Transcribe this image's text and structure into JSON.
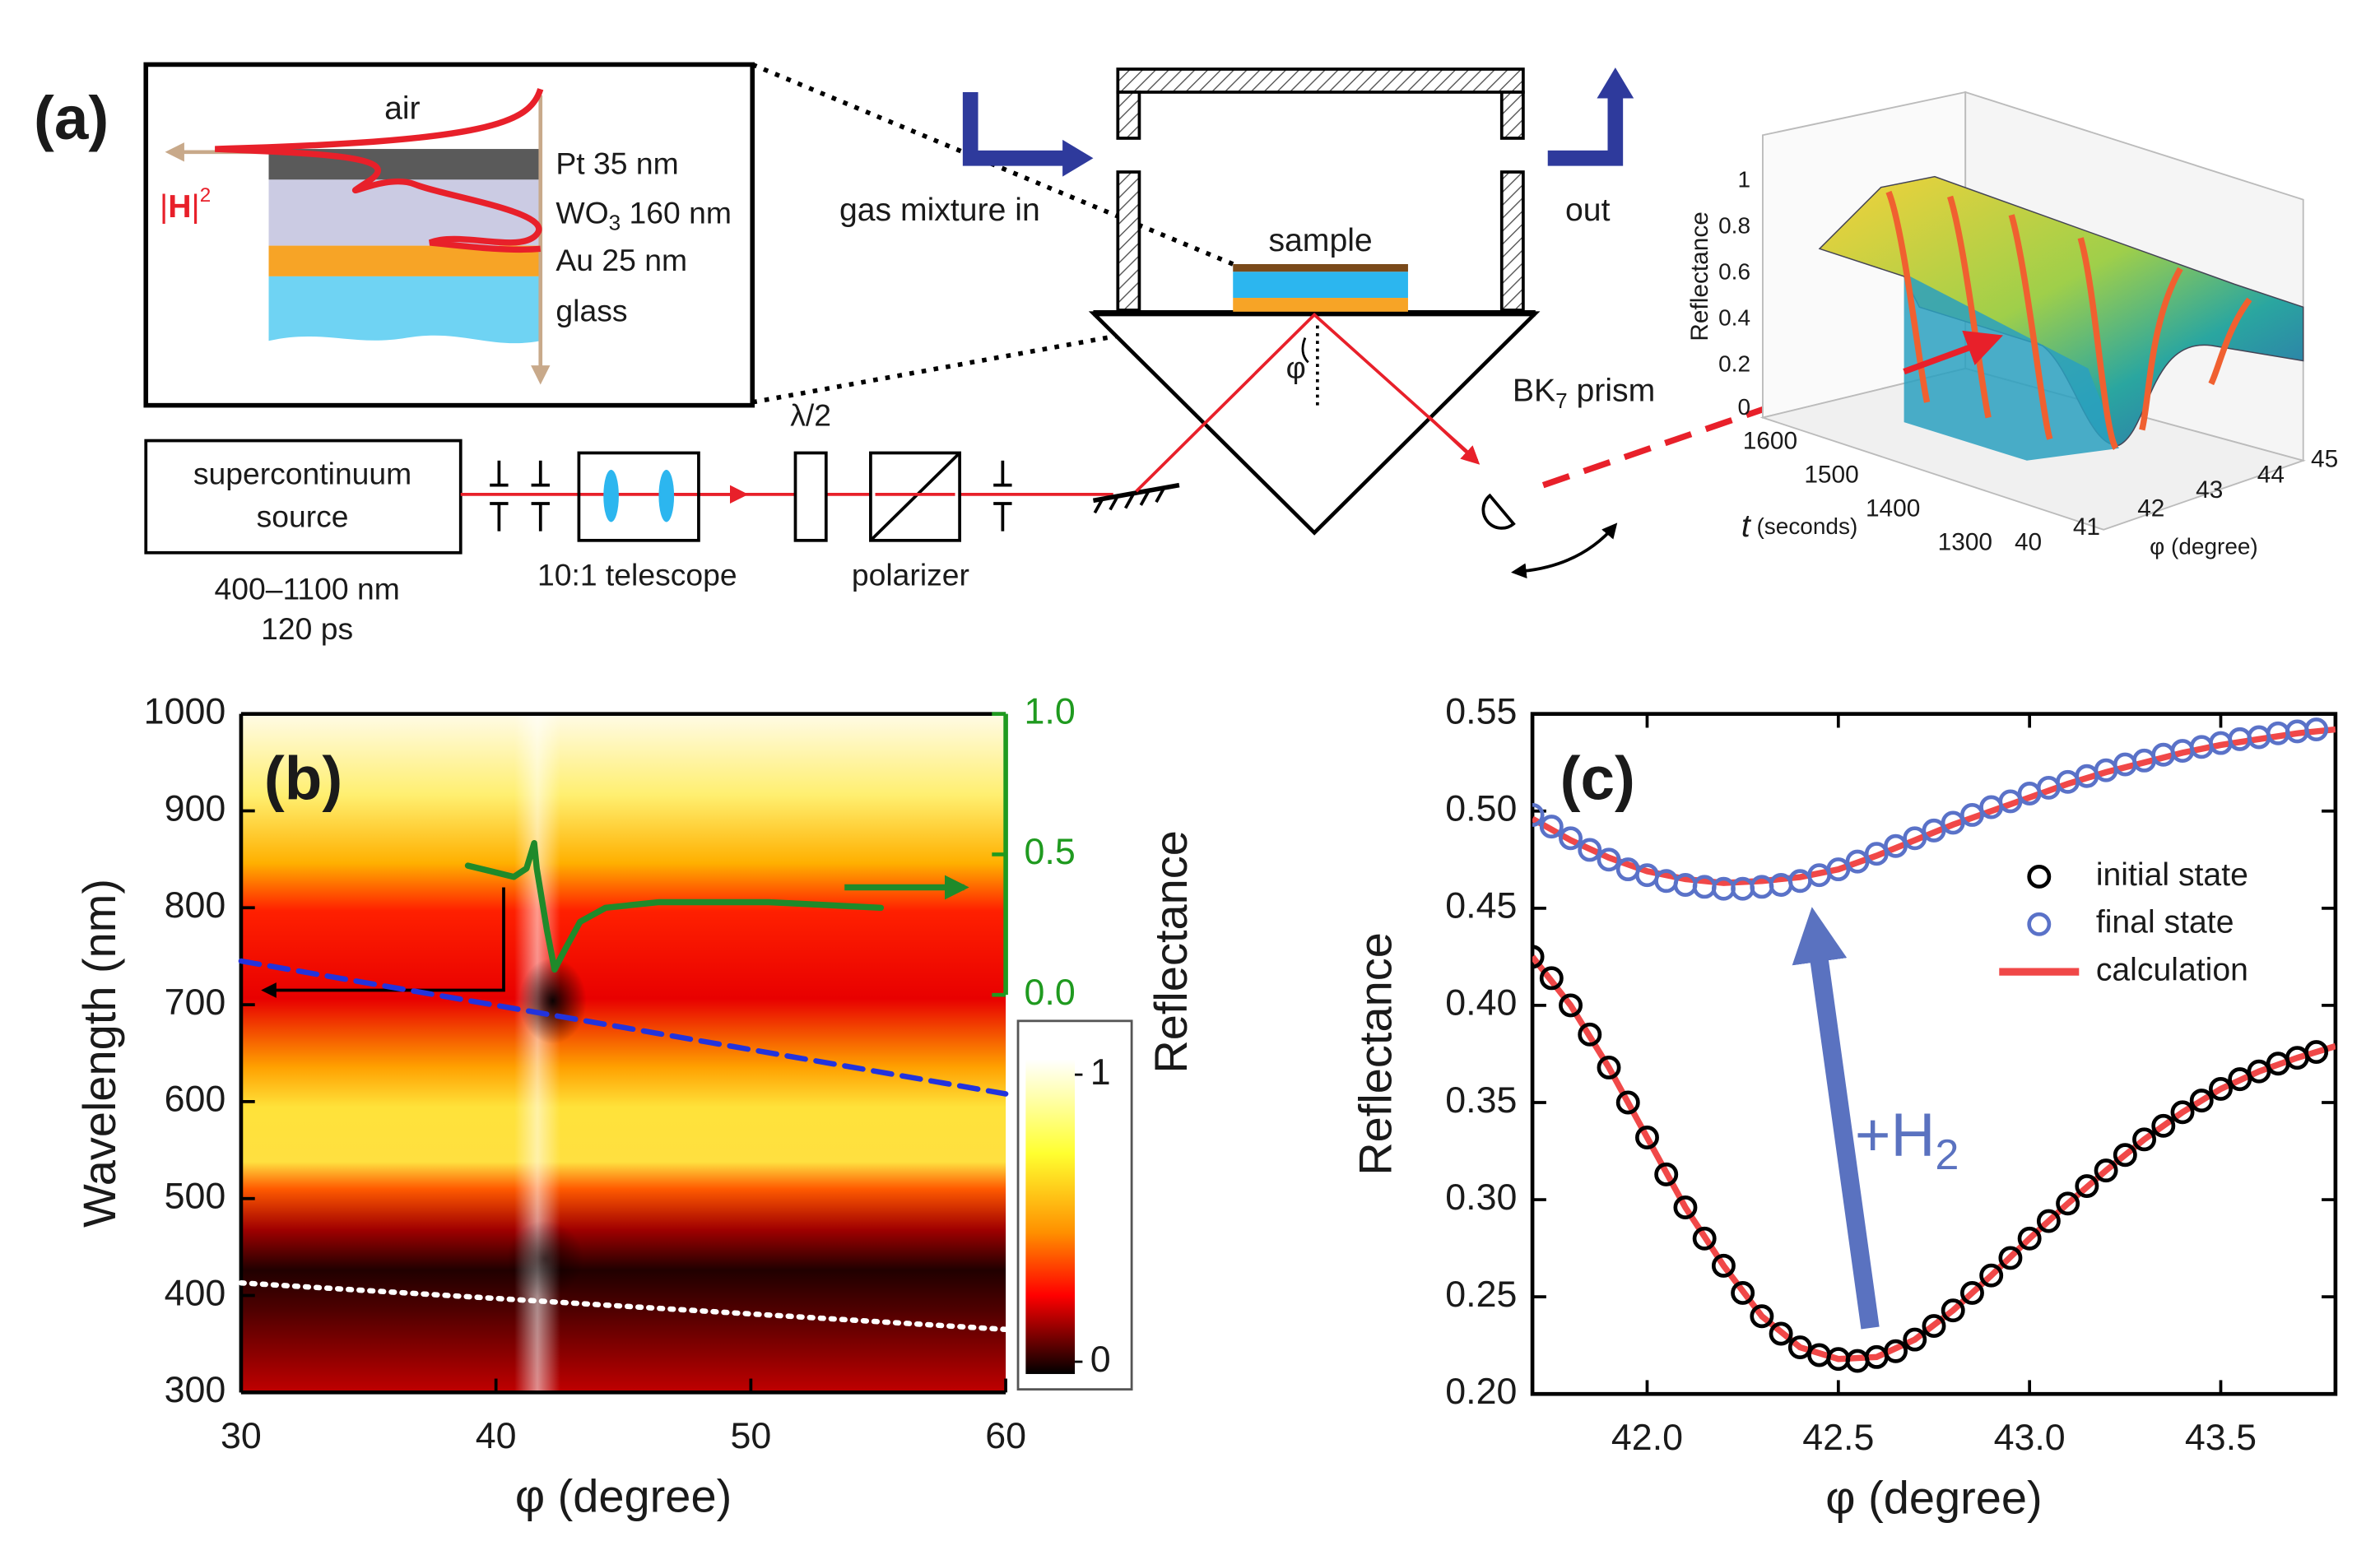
{
  "diagram": {
    "panel_label": "(a)",
    "inset": {
      "air": "air",
      "layers": [
        {
          "text": "Pt 35 nm"
        },
        {
          "text": "WO",
          "sub": "3",
          "rest": " 160 nm"
        },
        {
          "text": "Au 25 nm"
        },
        {
          "text": "glass"
        }
      ],
      "field": {
        "open": "|",
        "symbol": "H",
        "close": "|",
        "sup": "2"
      }
    },
    "gas_in": "gas mixture in",
    "sample": "sample",
    "out": "out",
    "angle": "φ",
    "prism": {
      "text": "BK",
      "sub": "7",
      "rest": " prism"
    },
    "source": [
      "supercontinuum",
      "source"
    ],
    "source_specs": [
      "400–1100 nm",
      "120 ps"
    ],
    "telescope": "10:1 telescope",
    "waveplate": "λ/2",
    "polarizer": "polarizer",
    "surface_plot": {
      "zlabel": "Reflectance",
      "zticks": [
        1,
        0.8,
        0.6,
        0.4,
        0.2,
        0
      ],
      "tlabel": {
        "symbol": "t",
        "rest": " (seconds)"
      },
      "tticks": [
        1600,
        1500,
        1400,
        1300
      ],
      "philabel": "φ (degree)",
      "phiticks": [
        40,
        41,
        42,
        43,
        44,
        45
      ]
    }
  },
  "chart_data": [
    {
      "type": "heatmap",
      "panel_label": "(b)",
      "xlabel": "φ (degree)",
      "ylabel": "Wavelength  (nm)",
      "y2label": "Reflectance",
      "xlim": [
        30,
        60
      ],
      "xticks": [
        30,
        40,
        50,
        60
      ],
      "ylim": [
        300,
        1000
      ],
      "yticks": [
        300,
        400,
        500,
        600,
        700,
        800,
        900,
        1000
      ],
      "y2lim": [
        -1.415,
        1.0
      ],
      "y2ticks": [
        {
          "value": 0,
          "label": "0.0"
        },
        {
          "value": 0.5,
          "label": "0.5"
        },
        {
          "value": 1,
          "label": "1.0"
        }
      ],
      "y2color": "#1f9a1f",
      "colorbar": {
        "lim": [
          0,
          1
        ],
        "ticks": [
          0,
          1
        ]
      },
      "series": [
        {
          "color": "#1f8a2a",
          "axis": "y2",
          "style": "solid",
          "x": [
            38.9,
            39.8,
            40.7,
            41.2,
            41.5,
            41.6,
            42.0,
            42.3,
            42.7,
            43.3,
            44.3,
            46.4,
            50.7,
            55.1
          ],
          "values": [
            0.46,
            0.44,
            0.42,
            0.45,
            0.54,
            0.45,
            0.23,
            0.09,
            0.16,
            0.26,
            0.31,
            0.33,
            0.33,
            0.31
          ]
        },
        {
          "color": "#2233dd",
          "style": "dashed",
          "x": [
            30,
            60
          ],
          "values": [
            745,
            608
          ]
        },
        {
          "color": "#ffffff",
          "style": "dotted",
          "x": [
            30,
            60
          ],
          "values": [
            413,
            365
          ]
        }
      ]
    },
    {
      "type": "scatter",
      "panel_label": "(c)",
      "xlabel": "φ (degree)",
      "ylabel": "Reflectance",
      "xlim": [
        41.7,
        43.8
      ],
      "xticks": [
        {
          "value": 42,
          "label": "42.0"
        },
        {
          "value": 42.5,
          "label": "42.5"
        },
        {
          "value": 43,
          "label": "43.0"
        },
        {
          "value": 43.5,
          "label": "43.5"
        }
      ],
      "ylim": [
        0.2,
        0.55
      ],
      "yticks": [
        {
          "value": 0.2,
          "label": "0.20"
        },
        {
          "value": 0.25,
          "label": "0.25"
        },
        {
          "value": 0.3,
          "label": "0.30"
        },
        {
          "value": 0.35,
          "label": "0.35"
        },
        {
          "value": 0.4,
          "label": "0.40"
        },
        {
          "value": 0.45,
          "label": "0.45"
        },
        {
          "value": 0.5,
          "label": "0.50"
        },
        {
          "value": 0.55,
          "label": "0.55"
        }
      ],
      "legend": "right",
      "x": [
        41.7,
        41.75,
        41.8,
        41.85,
        41.9,
        41.95,
        42.0,
        42.05,
        42.1,
        42.15,
        42.2,
        42.25,
        42.3,
        42.35,
        42.4,
        42.45,
        42.5,
        42.55,
        42.6,
        42.65,
        42.7,
        42.75,
        42.8,
        42.85,
        42.9,
        42.95,
        43.0,
        43.05,
        43.1,
        43.15,
        43.2,
        43.25,
        43.3,
        43.35,
        43.4,
        43.45,
        43.5,
        43.55,
        43.6,
        43.65,
        43.7,
        43.75
      ],
      "series": [
        {
          "name": "initial state",
          "color": "#000000",
          "marker": "circle",
          "values": [
            0.425,
            0.414,
            0.4,
            0.385,
            0.368,
            0.35,
            0.332,
            0.313,
            0.296,
            0.28,
            0.266,
            0.252,
            0.24,
            0.231,
            0.224,
            0.22,
            0.218,
            0.217,
            0.219,
            0.222,
            0.228,
            0.235,
            0.243,
            0.252,
            0.261,
            0.27,
            0.28,
            0.289,
            0.298,
            0.307,
            0.315,
            0.323,
            0.331,
            0.338,
            0.345,
            0.351,
            0.357,
            0.362,
            0.366,
            0.37,
            0.373,
            0.376
          ]
        },
        {
          "name": "final state",
          "color": "#5a72c8",
          "marker": "circle",
          "values": [
            0.498,
            0.492,
            0.486,
            0.48,
            0.475,
            0.47,
            0.467,
            0.464,
            0.462,
            0.461,
            0.46,
            0.46,
            0.461,
            0.462,
            0.464,
            0.467,
            0.47,
            0.474,
            0.478,
            0.482,
            0.486,
            0.49,
            0.494,
            0.498,
            0.502,
            0.505,
            0.509,
            0.512,
            0.515,
            0.518,
            0.521,
            0.524,
            0.526,
            0.529,
            0.531,
            0.533,
            0.535,
            0.537,
            0.538,
            0.54,
            0.541,
            0.542
          ]
        },
        {
          "name": "calculation",
          "color": "#f04848",
          "marker": "line",
          "x": [
            41.7,
            41.8,
            41.9,
            42.0,
            42.1,
            42.2,
            42.3,
            42.4,
            42.5,
            42.6,
            42.7,
            42.8,
            42.9,
            43.0,
            43.1,
            43.2,
            43.3,
            43.4,
            43.5,
            43.6,
            43.7,
            43.8,
            null,
            41.7,
            41.8,
            41.9,
            42.0,
            42.1,
            42.2,
            42.3,
            42.4,
            42.5,
            42.6,
            42.7,
            42.8,
            42.9,
            43.0,
            43.1,
            43.2,
            43.3,
            43.4,
            43.5,
            43.6,
            43.7,
            43.8
          ],
          "values": [
            0.425,
            0.4,
            0.368,
            0.332,
            0.296,
            0.266,
            0.24,
            0.224,
            0.218,
            0.219,
            0.228,
            0.243,
            0.261,
            0.28,
            0.298,
            0.315,
            0.331,
            0.345,
            0.357,
            0.366,
            0.373,
            0.379,
            null,
            0.496,
            0.485,
            0.476,
            0.469,
            0.465,
            0.463,
            0.464,
            0.466,
            0.47,
            0.477,
            0.485,
            0.493,
            0.5,
            0.507,
            0.514,
            0.52,
            0.525,
            0.53,
            0.534,
            0.537,
            0.54,
            0.542
          ]
        }
      ],
      "annotation": {
        "text": "+H",
        "sub": "2",
        "color": "#5a72c0"
      }
    }
  ]
}
